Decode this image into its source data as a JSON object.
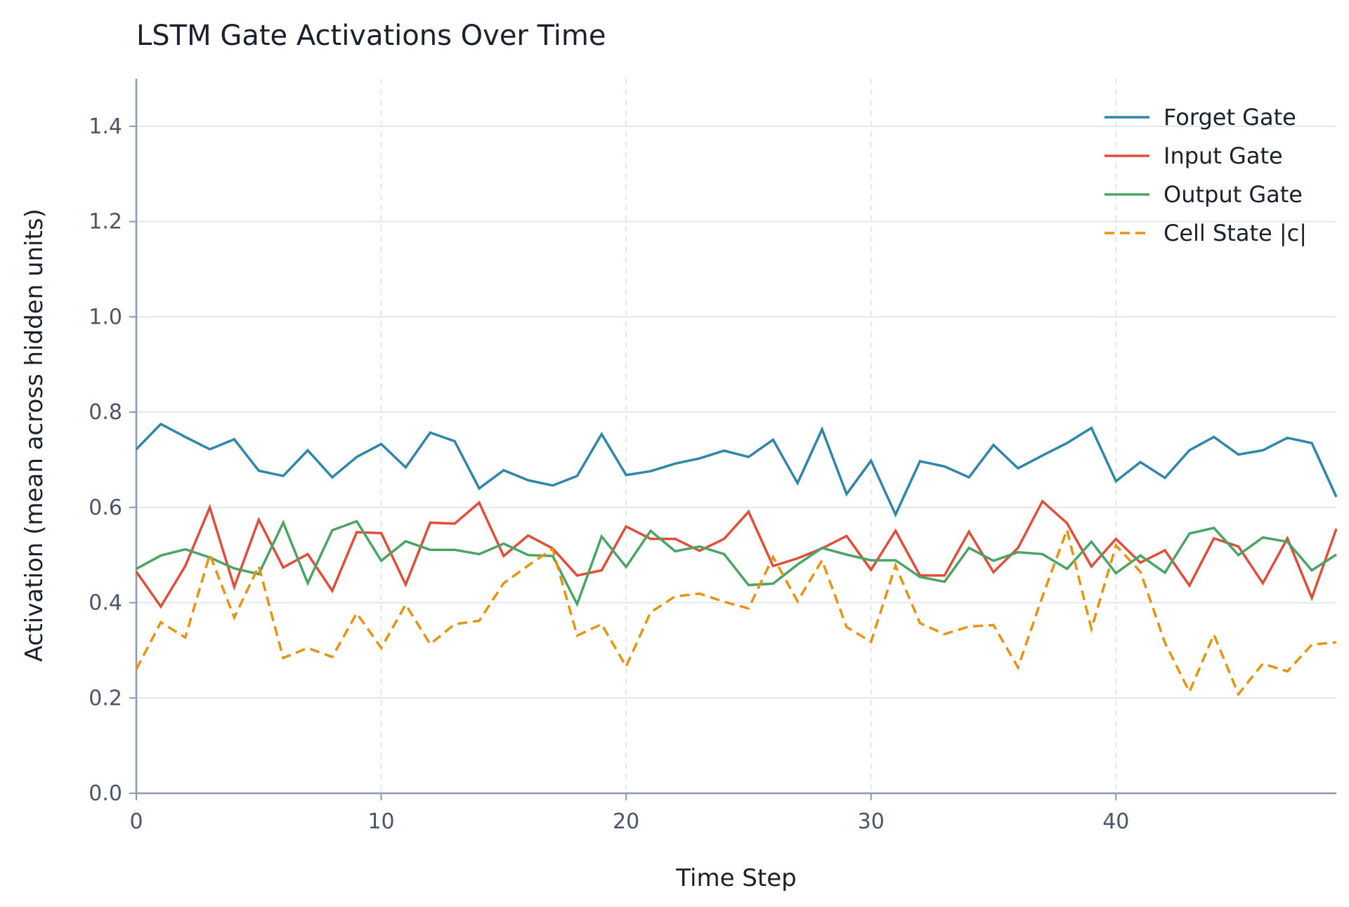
{
  "chart_data": {
    "type": "line",
    "title": "LSTM Gate Activations Over Time",
    "xlabel": "Time Step",
    "ylabel": "Activation (mean across hidden units)",
    "xlim": [
      0,
      49
    ],
    "ylim": [
      0,
      1.5
    ],
    "x_ticks": [
      0,
      10,
      20,
      30,
      40
    ],
    "y_ticks": [
      0.0,
      0.2,
      0.4,
      0.6,
      0.8,
      1.0,
      1.2,
      1.4
    ],
    "y_tick_labels": [
      "0.0",
      "0.2",
      "0.4",
      "0.6",
      "0.8",
      "1.0",
      "1.2",
      "1.4"
    ],
    "x_tick_labels": [
      "0",
      "10",
      "20",
      "30",
      "40"
    ],
    "grid": {
      "horizontal": "solid",
      "vertical": "dashed"
    },
    "legend_position": "top-right",
    "x": [
      0,
      1,
      2,
      3,
      4,
      5,
      6,
      7,
      8,
      9,
      10,
      11,
      12,
      13,
      14,
      15,
      16,
      17,
      18,
      19,
      20,
      21,
      22,
      23,
      24,
      25,
      26,
      27,
      28,
      29,
      30,
      31,
      32,
      33,
      34,
      35,
      36,
      37,
      38,
      39,
      40,
      41,
      42,
      43,
      44,
      45,
      46,
      47,
      48,
      49
    ],
    "series": [
      {
        "name": "Forget Gate",
        "color": "#2e86ab",
        "dash": "solid",
        "values": [
          0.722,
          0.775,
          0.748,
          0.722,
          0.743,
          0.677,
          0.666,
          0.72,
          0.663,
          0.706,
          0.733,
          0.684,
          0.757,
          0.739,
          0.64,
          0.678,
          0.657,
          0.646,
          0.666,
          0.754,
          0.668,
          0.676,
          0.692,
          0.703,
          0.719,
          0.706,
          0.742,
          0.651,
          0.764,
          0.628,
          0.698,
          0.585,
          0.697,
          0.686,
          0.663,
          0.731,
          0.682,
          0.709,
          0.735,
          0.767,
          0.655,
          0.695,
          0.662,
          0.72,
          0.748,
          0.711,
          0.72,
          0.746,
          0.735,
          0.622
        ]
      },
      {
        "name": "Input Gate",
        "color": "#e04e39",
        "dash": "solid",
        "values": [
          0.465,
          0.392,
          0.477,
          0.6,
          0.433,
          0.574,
          0.474,
          0.502,
          0.425,
          0.548,
          0.546,
          0.438,
          0.568,
          0.566,
          0.61,
          0.498,
          0.541,
          0.514,
          0.457,
          0.468,
          0.56,
          0.534,
          0.534,
          0.509,
          0.534,
          0.591,
          0.477,
          0.493,
          0.514,
          0.54,
          0.469,
          0.551,
          0.457,
          0.457,
          0.549,
          0.464,
          0.515,
          0.613,
          0.567,
          0.476,
          0.534,
          0.484,
          0.51,
          0.436,
          0.535,
          0.518,
          0.441,
          0.535,
          0.41,
          0.555
        ]
      },
      {
        "name": "Output Gate",
        "color": "#4aa564",
        "dash": "solid",
        "values": [
          0.471,
          0.499,
          0.512,
          0.495,
          0.472,
          0.46,
          0.568,
          0.441,
          0.552,
          0.571,
          0.488,
          0.529,
          0.511,
          0.511,
          0.502,
          0.524,
          0.5,
          0.498,
          0.397,
          0.539,
          0.475,
          0.551,
          0.508,
          0.518,
          0.502,
          0.437,
          0.44,
          0.48,
          0.515,
          0.501,
          0.489,
          0.489,
          0.454,
          0.444,
          0.515,
          0.488,
          0.506,
          0.502,
          0.471,
          0.528,
          0.462,
          0.499,
          0.463,
          0.545,
          0.557,
          0.5,
          0.537,
          0.528,
          0.468,
          0.501
        ]
      },
      {
        "name": "Cell State |c|",
        "color": "#e8930f",
        "dash": "dashed",
        "values": [
          0.26,
          0.359,
          0.327,
          0.501,
          0.369,
          0.477,
          0.284,
          0.305,
          0.286,
          0.378,
          0.305,
          0.396,
          0.313,
          0.355,
          0.362,
          0.441,
          0.478,
          0.513,
          0.331,
          0.355,
          0.266,
          0.38,
          0.413,
          0.419,
          0.402,
          0.388,
          0.496,
          0.403,
          0.489,
          0.349,
          0.318,
          0.478,
          0.357,
          0.334,
          0.35,
          0.353,
          0.264,
          0.413,
          0.553,
          0.345,
          0.52,
          0.465,
          0.316,
          0.213,
          0.333,
          0.208,
          0.272,
          0.256,
          0.312,
          0.317
        ]
      }
    ]
  }
}
